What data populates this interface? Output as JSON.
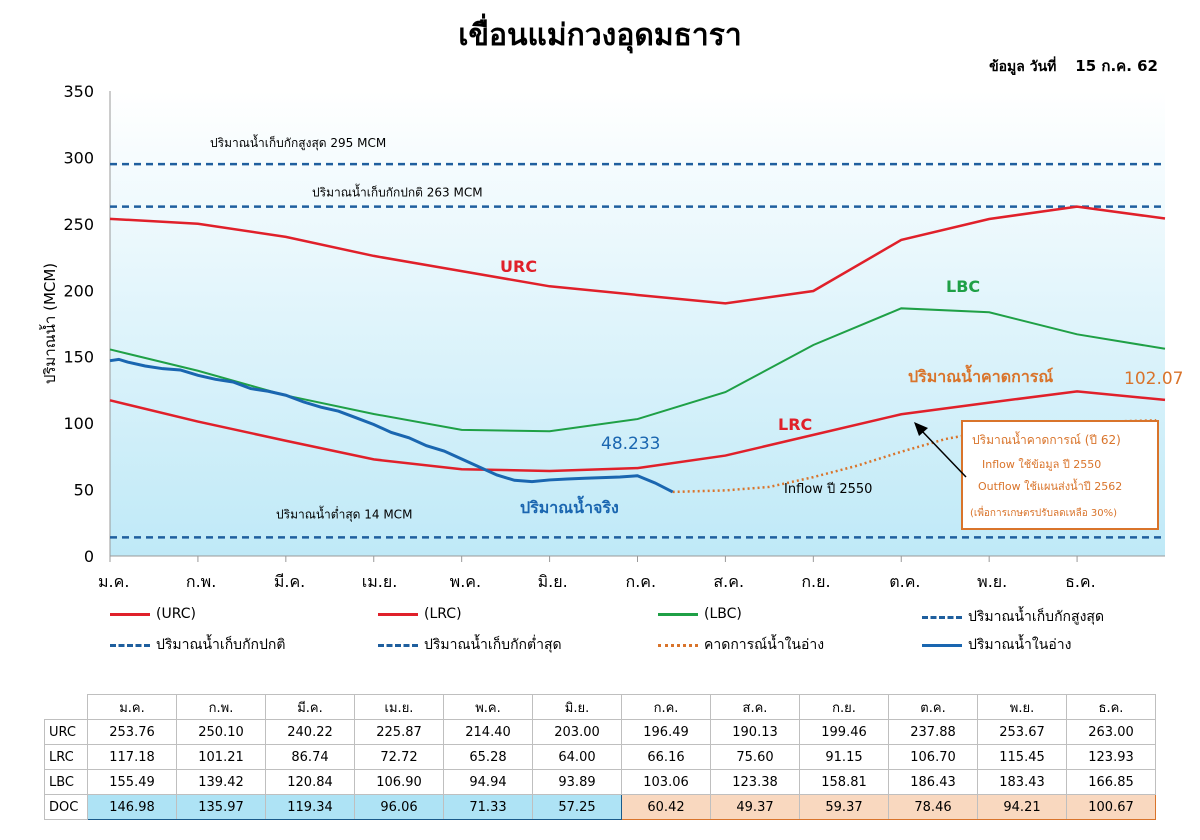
{
  "title": "เขื่อนแม่กวงอุดมธารา",
  "data_date_label": "ข้อมูล วันที่",
  "data_date_value": "15 ก.ค. 62",
  "colors": {
    "urc": "#e0202a",
    "lrc": "#e0202a",
    "lbc": "#1fa046",
    "ref": "#1f5f9e",
    "actual": "#1a66b0",
    "forecast": "#d9742b",
    "plot_bg_top": "#ffffff",
    "plot_bg_bottom": "#bfe9f7",
    "doc_actual_bg": "#aee3f5",
    "doc_forecast_bg": "#f9d8bf"
  },
  "chart_data": {
    "type": "line",
    "ylabel": "ปริมาณน้ำ (MCM)",
    "xlabel": "",
    "ylim": [
      0,
      350
    ],
    "yticks": [
      0,
      50,
      100,
      150,
      200,
      250,
      300,
      350
    ],
    "categories": [
      "ม.ค.",
      "ก.พ.",
      "มี.ค.",
      "เม.ย.",
      "พ.ค.",
      "มิ.ย.",
      "ก.ค.",
      "ส.ค.",
      "ก.ย.",
      "ต.ค.",
      "พ.ย.",
      "ธ.ค."
    ],
    "series": [
      {
        "name": "(URC)",
        "key": "urc",
        "values": [
          253.76,
          250.1,
          240.22,
          225.87,
          214.4,
          203.0,
          196.49,
          190.13,
          199.46,
          237.88,
          253.67,
          263.0
        ],
        "end_value": 254
      },
      {
        "name": "(LRC)",
        "key": "lrc",
        "values": [
          117.18,
          101.21,
          86.74,
          72.72,
          65.28,
          64.0,
          66.16,
          75.6,
          91.15,
          106.7,
          115.45,
          123.93
        ],
        "end_value": 117.5
      },
      {
        "name": "(LBC)",
        "key": "lbc",
        "values": [
          155.49,
          139.42,
          120.84,
          106.9,
          94.94,
          93.89,
          103.06,
          123.38,
          158.81,
          186.43,
          183.43,
          166.85
        ],
        "end_value": 156
      }
    ],
    "reference_lines": [
      {
        "name": "ปริมาณน้ำเก็บกักสูงสุด",
        "value": 295,
        "label": "ปริมาณน้ำเก็บกักสูงสุด 295 MCM"
      },
      {
        "name": "ปริมาณน้ำเก็บกักปกติ",
        "value": 263,
        "label": "ปริมาณน้ำเก็บกักปกติ 263 MCM"
      },
      {
        "name": "ปริมาณน้ำเก็บกักต่ำสุด",
        "value": 14,
        "label": "ปริมาณน้ำต่ำสุด 14 MCM"
      }
    ],
    "actual": {
      "name": "ปริมาณน้ำในอ่าง",
      "points": [
        [
          0,
          147
        ],
        [
          0.1,
          148
        ],
        [
          0.2,
          146
        ],
        [
          0.4,
          143
        ],
        [
          0.6,
          141
        ],
        [
          0.8,
          140
        ],
        [
          1.0,
          136
        ],
        [
          1.2,
          133
        ],
        [
          1.4,
          131
        ],
        [
          1.6,
          126
        ],
        [
          1.8,
          124
        ],
        [
          2.0,
          121
        ],
        [
          2.2,
          116
        ],
        [
          2.4,
          112
        ],
        [
          2.6,
          109
        ],
        [
          2.8,
          104
        ],
        [
          3.0,
          99
        ],
        [
          3.2,
          93
        ],
        [
          3.4,
          89
        ],
        [
          3.6,
          83
        ],
        [
          3.8,
          79
        ],
        [
          4.0,
          73
        ],
        [
          4.2,
          67
        ],
        [
          4.4,
          61
        ],
        [
          4.6,
          57
        ],
        [
          4.8,
          56
        ],
        [
          5.0,
          57.25
        ],
        [
          5.2,
          58
        ],
        [
          5.4,
          58.5
        ],
        [
          5.6,
          59
        ],
        [
          5.8,
          59.5
        ],
        [
          6.0,
          60.42
        ],
        [
          6.2,
          55
        ],
        [
          6.4,
          48.233
        ]
      ]
    },
    "forecast": {
      "name": "คาดการณ์น้ำในอ่าง",
      "points": [
        [
          6.4,
          48.233
        ],
        [
          7.0,
          49.37
        ],
        [
          7.5,
          52
        ],
        [
          8.0,
          59.37
        ],
        [
          8.5,
          68
        ],
        [
          9.0,
          78.46
        ],
        [
          9.5,
          88
        ],
        [
          10.0,
          94.21
        ],
        [
          10.5,
          98
        ],
        [
          11.0,
          100.67
        ],
        [
          11.9,
          102.07
        ]
      ]
    },
    "annotations": {
      "urc_label": "URC",
      "lbc_label": "LBC",
      "lrc_label": "LRC",
      "forecast_label": "ปริมาณน้ำคาดการณ์",
      "forecast_end_value": "102.07",
      "actual_label": "ปริมาณน้ำจริง",
      "actual_end_value": "48.233",
      "inflow_label": "Inflow ปี 2550"
    },
    "note_box": {
      "line1": "ปริมาณน้ำคาดการณ์ (ปี 62)",
      "line2": "Inflow ใช้ข้อมูล ปี 2550",
      "line3": "Outflow ใช้แผนส่งน้ำปี 2562",
      "line4": "(เพื่อการเกษตรปรับลดเหลือ 30%)"
    }
  },
  "legend": [
    {
      "label": "(URC)",
      "style": "solid",
      "color": "#e0202a"
    },
    {
      "label": "(LRC)",
      "style": "solid",
      "color": "#e0202a"
    },
    {
      "label": "(LBC)",
      "style": "solid",
      "color": "#1fa046"
    },
    {
      "label": "ปริมาณน้ำเก็บกักสูงสุด",
      "style": "dashed",
      "color": "#1f5f9e"
    },
    {
      "label": "ปริมาณน้ำเก็บกักปกติ",
      "style": "dashed",
      "color": "#1f5f9e"
    },
    {
      "label": "ปริมาณน้ำเก็บกักต่ำสุด",
      "style": "dashed",
      "color": "#1f5f9e"
    },
    {
      "label": "คาดการณ์น้ำในอ่าง",
      "style": "dotted",
      "color": "#d9742b"
    },
    {
      "label": "ปริมาณน้ำในอ่าง",
      "style": "solid",
      "color": "#1a66b0"
    }
  ],
  "table": {
    "months": [
      "ม.ค.",
      "ก.พ.",
      "มี.ค.",
      "เม.ย.",
      "พ.ค.",
      "มิ.ย.",
      "ก.ค.",
      "ส.ค.",
      "ก.ย.",
      "ต.ค.",
      "พ.ย.",
      "ธ.ค."
    ],
    "rows": [
      {
        "label": "URC",
        "values": [
          "253.76",
          "250.10",
          "240.22",
          "225.87",
          "214.40",
          "203.00",
          "196.49",
          "190.13",
          "199.46",
          "237.88",
          "253.67",
          "263.00"
        ]
      },
      {
        "label": "LRC",
        "values": [
          "117.18",
          "101.21",
          "86.74",
          "72.72",
          "65.28",
          "64.00",
          "66.16",
          "75.60",
          "91.15",
          "106.70",
          "115.45",
          "123.93"
        ]
      },
      {
        "label": "LBC",
        "values": [
          "155.49",
          "139.42",
          "120.84",
          "106.90",
          "94.94",
          "93.89",
          "103.06",
          "123.38",
          "158.81",
          "186.43",
          "183.43",
          "166.85"
        ]
      },
      {
        "label": "DOC",
        "values": [
          "146.98",
          "135.97",
          "119.34",
          "96.06",
          "71.33",
          "57.25",
          "60.42",
          "49.37",
          "59.37",
          "78.46",
          "94.21",
          "100.67"
        ]
      }
    ]
  }
}
